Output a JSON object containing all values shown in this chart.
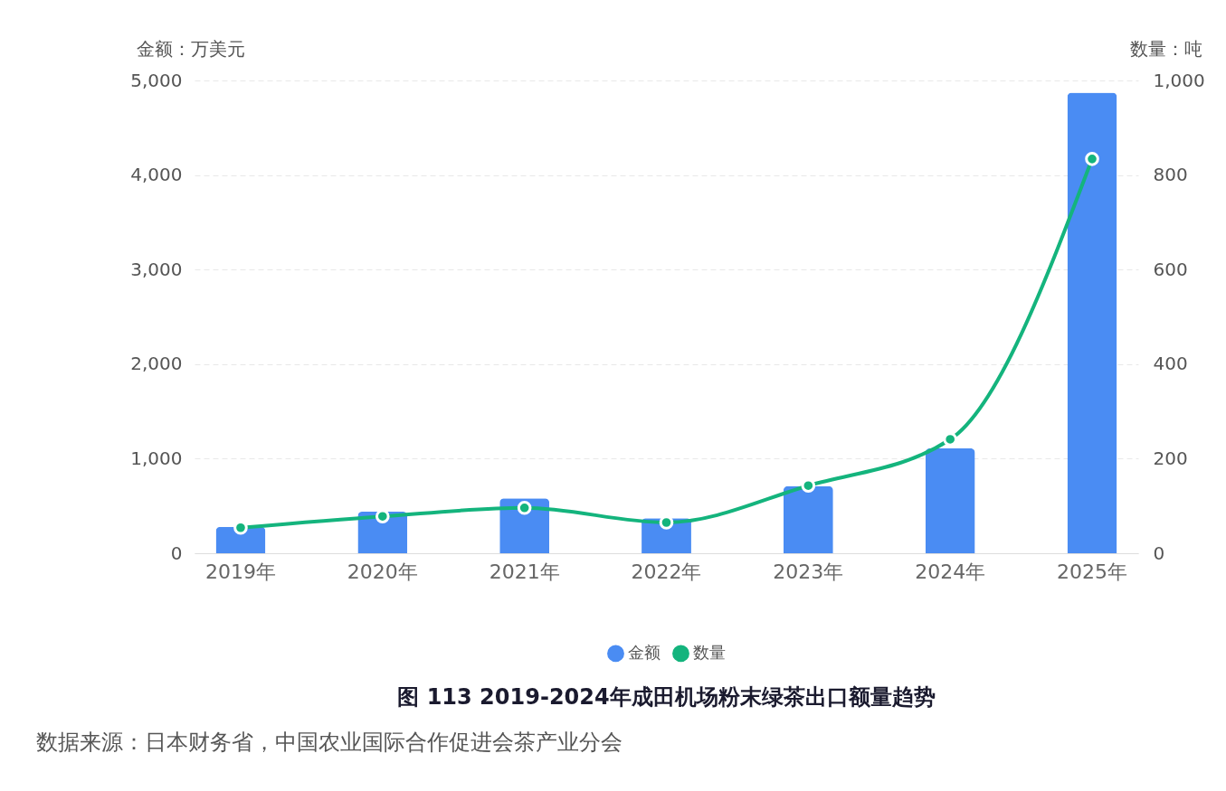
{
  "chart_data": {
    "type": "bar",
    "title": "图 113 2019-2024年成田机场粉末绿茶出口额量趋势",
    "categories": [
      "2019年",
      "2020年",
      "2021年",
      "2022年",
      "2023年",
      "2024年",
      "2025年"
    ],
    "series": [
      {
        "name": "金额",
        "color": "#4a8cf3",
        "values": [
          280,
          440,
          580,
          370,
          710,
          1110,
          4870
        ]
      },
      {
        "name": "数量",
        "type": "line",
        "axis": "y2",
        "color": "#14b47d",
        "values": [
          54,
          78,
          96,
          65,
          143,
          241,
          834
        ]
      }
    ],
    "ylabel": "金额：万美元",
    "y2label": "数量：吨",
    "ylim": [
      0,
      5000
    ],
    "yticks": [
      0,
      {
        "value": 1000,
        "label": "1,000"
      },
      {
        "value": 2000,
        "label": "2,000"
      },
      {
        "value": 3000,
        "label": "3,000"
      },
      {
        "value": 4000,
        "label": "4,000"
      },
      {
        "value": 5000,
        "label": "5,000"
      }
    ],
    "y2lim": [
      0,
      1000
    ],
    "y2ticks": [
      0,
      200,
      400,
      600,
      800,
      {
        "value": 1000,
        "label": "1,000"
      }
    ],
    "grid": "y",
    "legend": "bottom",
    "marker": "circle",
    "annotations": [
      "数据来源：日本财务省，中国农业国际合作促进会茶产业分会"
    ]
  }
}
